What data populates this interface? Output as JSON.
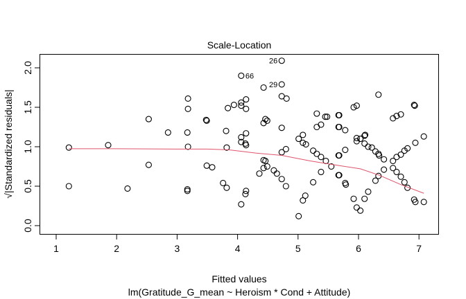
{
  "chart_data": {
    "type": "scatter",
    "title": "Scale-Location",
    "xlabel": "Fitted values",
    "subtitle": "lm(Gratitude_G_mean ~ Heroism * Cond + Attitude)",
    "ylabel": "√|Standardized residuals|",
    "xlim": [
      0.9,
      7.35
    ],
    "ylim": [
      -0.1,
      2.2
    ],
    "xticks": [
      1,
      2,
      3,
      4,
      5,
      6,
      7
    ],
    "yticks": [
      "0.0",
      "0.5",
      "1.0",
      "1.5",
      "2.0"
    ],
    "grid": false,
    "smooth_color": "#DF536B",
    "points": [
      [
        1.21,
        0.99
      ],
      [
        1.21,
        0.5
      ],
      [
        1.86,
        1.02
      ],
      [
        2.18,
        0.47
      ],
      [
        2.53,
        1.35
      ],
      [
        2.53,
        0.77
      ],
      [
        2.85,
        1.18
      ],
      [
        3.18,
        1.61
      ],
      [
        3.18,
        1.48
      ],
      [
        3.17,
        1.18
      ],
      [
        3.18,
        1.0
      ],
      [
        3.17,
        0.46
      ],
      [
        3.17,
        0.44
      ],
      [
        3.48,
        1.34
      ],
      [
        3.49,
        1.33
      ],
      [
        3.49,
        0.76
      ],
      [
        3.58,
        0.74
      ],
      [
        3.76,
        0.54
      ],
      [
        3.82,
        0.48
      ],
      [
        3.81,
        1.2
      ],
      [
        3.82,
        0.99
      ],
      [
        3.84,
        1.49
      ],
      [
        3.94,
        1.53
      ],
      [
        4.06,
        1.9
      ],
      [
        4.06,
        1.56
      ],
      [
        4.06,
        1.52
      ],
      [
        4.06,
        1.12
      ],
      [
        4.06,
        1.06
      ],
      [
        4.06,
        0.27
      ],
      [
        4.43,
        1.75
      ],
      [
        4.73,
        2.09
      ],
      [
        4.73,
        1.79
      ],
      [
        4.73,
        1.64
      ],
      [
        4.81,
        1.61
      ],
      [
        4.14,
        1.6
      ],
      [
        4.14,
        1.48
      ],
      [
        4.46,
        1.35
      ],
      [
        4.43,
        1.3
      ],
      [
        4.49,
        1.33
      ],
      [
        4.73,
        1.24
      ],
      [
        4.14,
        1.17
      ],
      [
        4.14,
        1.02
      ],
      [
        4.13,
        1.04
      ],
      [
        4.73,
        0.93
      ],
      [
        4.8,
        0.97
      ],
      [
        4.43,
        0.83
      ],
      [
        4.46,
        0.82
      ],
      [
        4.49,
        0.75
      ],
      [
        4.43,
        0.73
      ],
      [
        4.36,
        0.66
      ],
      [
        4.6,
        0.7
      ],
      [
        4.65,
        0.66
      ],
      [
        4.73,
        0.59
      ],
      [
        4.8,
        0.5
      ],
      [
        4.14,
        0.44
      ],
      [
        4.13,
        0.4
      ],
      [
        5.01,
        1.1
      ],
      [
        5.08,
        1.15
      ],
      [
        5.08,
        1.05
      ],
      [
        5.13,
        1.03
      ],
      [
        5.31,
        1.42
      ],
      [
        5.38,
        1.28
      ],
      [
        5.31,
        1.25
      ],
      [
        5.45,
        1.38
      ],
      [
        5.48,
        1.38
      ],
      [
        5.25,
        0.95
      ],
      [
        5.31,
        0.91
      ],
      [
        5.38,
        0.87
      ],
      [
        5.46,
        0.82
      ],
      [
        5.55,
        0.75
      ],
      [
        5.38,
        0.68
      ],
      [
        5.25,
        0.55
      ],
      [
        5.12,
        0.38
      ],
      [
        5.08,
        0.32
      ],
      [
        5.01,
        0.12
      ],
      [
        5.67,
        1.4
      ],
      [
        5.67,
        1.25
      ],
      [
        5.67,
        0.89
      ],
      [
        5.67,
        0.64
      ],
      [
        6.33,
        1.66
      ],
      [
        5.92,
        1.5
      ],
      [
        5.97,
        1.52
      ],
      [
        5.68,
        1.4
      ],
      [
        5.68,
        1.25
      ],
      [
        5.78,
        1.21
      ],
      [
        5.97,
        1.11
      ],
      [
        5.97,
        1.07
      ],
      [
        6.03,
        1.1
      ],
      [
        6.1,
        1.14
      ],
      [
        6.11,
        1.15
      ],
      [
        6.1,
        1.04
      ],
      [
        6.16,
        1.0
      ],
      [
        6.22,
        0.99
      ],
      [
        6.28,
        0.94
      ],
      [
        6.33,
        0.91
      ],
      [
        6.34,
        0.89
      ],
      [
        6.42,
        0.84
      ],
      [
        5.78,
        0.96
      ],
      [
        5.68,
        0.89
      ],
      [
        6.42,
        0.71
      ],
      [
        6.33,
        0.63
      ],
      [
        6.28,
        0.57
      ],
      [
        6.16,
        0.43
      ],
      [
        6.1,
        0.34
      ],
      [
        5.92,
        0.34
      ],
      [
        5.97,
        0.23
      ],
      [
        6.03,
        0.19
      ],
      [
        5.68,
        0.64
      ],
      [
        5.78,
        0.54
      ],
      [
        5.79,
        0.52
      ],
      [
        6.57,
        1.36
      ],
      [
        6.63,
        1.39
      ],
      [
        6.7,
        1.41
      ],
      [
        6.92,
        1.53
      ],
      [
        6.93,
        1.52
      ],
      [
        6.57,
        0.82
      ],
      [
        6.63,
        0.87
      ],
      [
        6.7,
        0.9
      ],
      [
        6.76,
        0.95
      ],
      [
        6.81,
        0.98
      ],
      [
        6.94,
        1.05
      ],
      [
        7.08,
        1.13
      ],
      [
        6.57,
        0.73
      ],
      [
        6.63,
        0.68
      ],
      [
        6.7,
        0.62
      ],
      [
        6.76,
        0.55
      ],
      [
        6.81,
        0.48
      ],
      [
        6.92,
        0.33
      ],
      [
        6.94,
        0.3
      ],
      [
        7.08,
        0.3
      ]
    ],
    "smooth": [
      [
        1.21,
        0.975
      ],
      [
        2,
        0.975
      ],
      [
        3,
        0.97
      ],
      [
        3.5,
        0.97
      ],
      [
        3.86,
        0.96
      ],
      [
        4.3,
        0.92
      ],
      [
        4.73,
        0.89
      ],
      [
        5.2,
        0.82
      ],
      [
        5.69,
        0.76
      ],
      [
        6.03,
        0.72
      ],
      [
        6.34,
        0.64
      ],
      [
        6.7,
        0.52
      ],
      [
        7.08,
        0.41
      ]
    ],
    "labels": [
      {
        "text": "26",
        "x": 4.73,
        "y": 2.09,
        "side": "left"
      },
      {
        "text": "66",
        "x": 4.06,
        "y": 1.9,
        "side": "right"
      },
      {
        "text": "29",
        "x": 4.73,
        "y": 1.79,
        "side": "left"
      }
    ]
  }
}
